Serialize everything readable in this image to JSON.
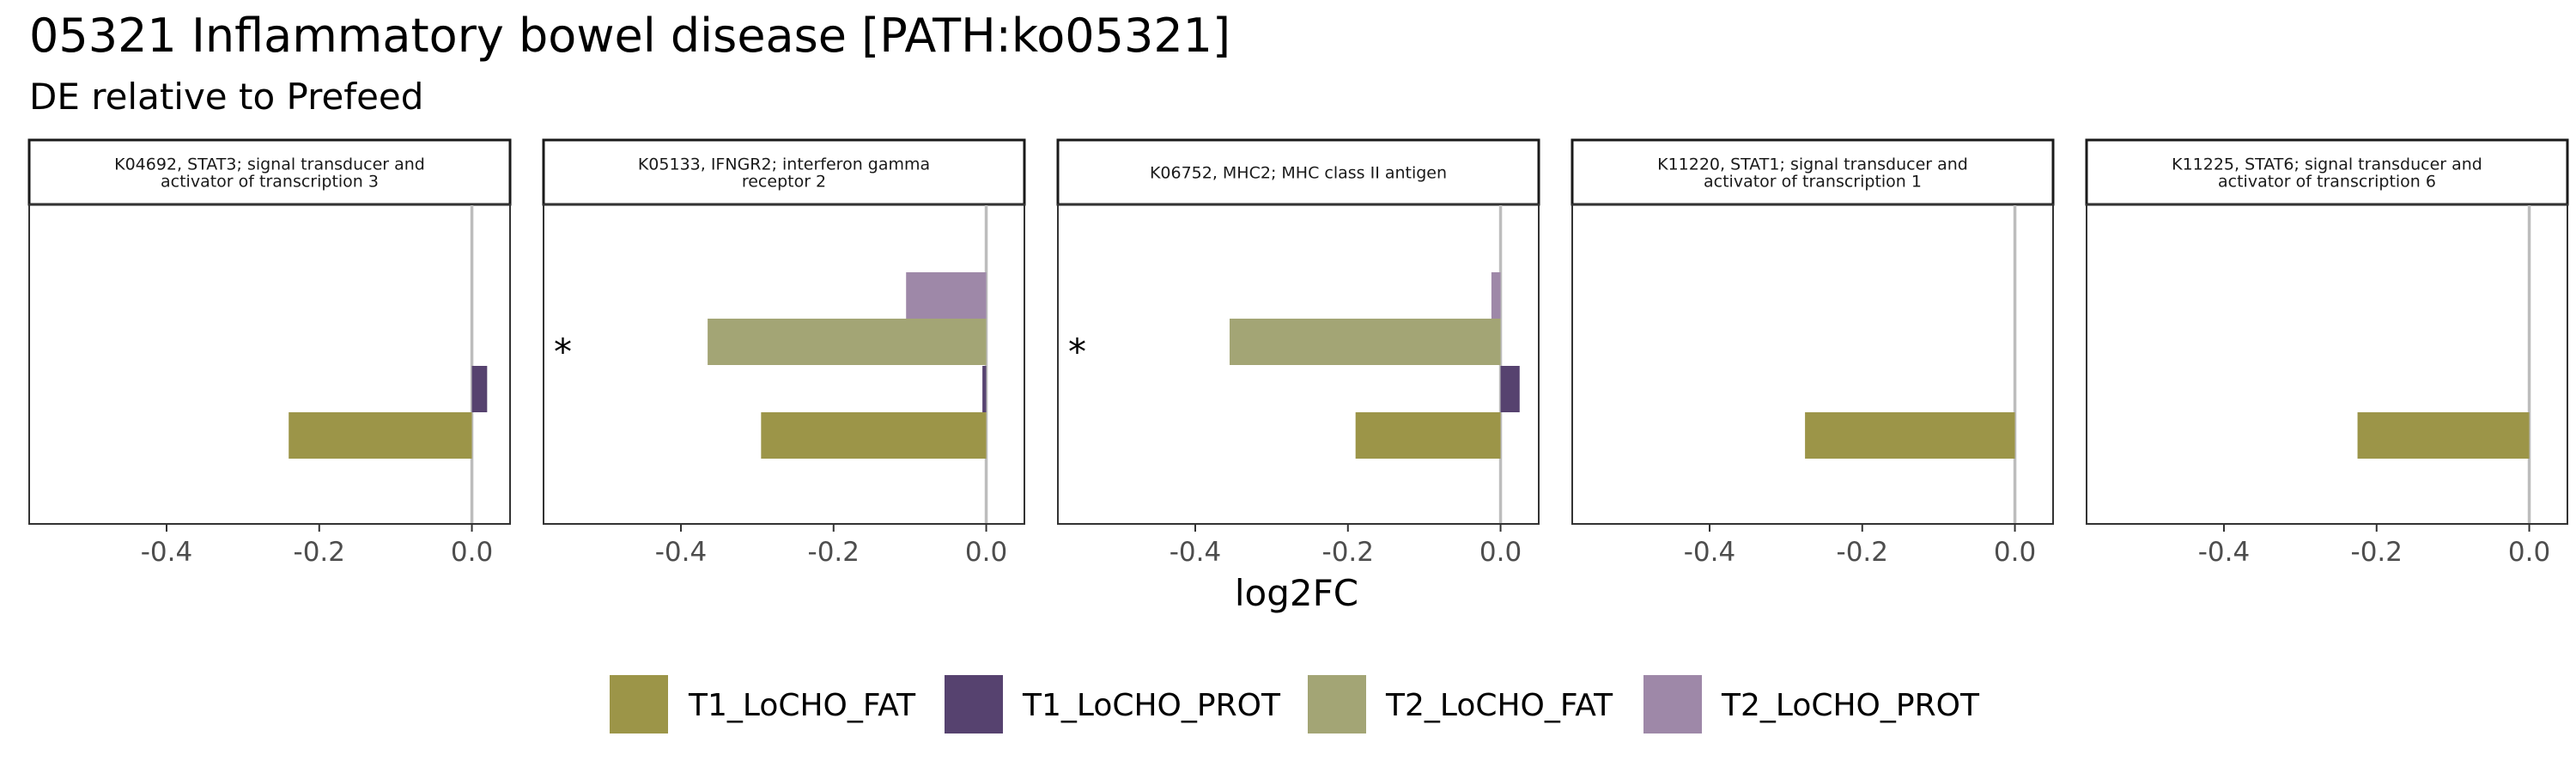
{
  "title": "05321 Inflammatory bowel disease [PATH:ko05321]",
  "subtitle": "DE relative to Prefeed",
  "chart_data": {
    "type": "bar",
    "orientation": "horizontal",
    "facet": true,
    "xlabel": "log2FC",
    "xlim": [
      -0.58,
      0.05
    ],
    "xticks": [
      -0.4,
      -0.2,
      0.0
    ],
    "xtick_labels": [
      "-0.4",
      "-0.2",
      "0.0"
    ],
    "grid": false,
    "legend_position": "bottom",
    "series": [
      {
        "name": "T1_LoCHO_FAT",
        "color": "#9c9548"
      },
      {
        "name": "T1_LoCHO_PROT",
        "color": "#56426f"
      },
      {
        "name": "T2_LoCHO_FAT",
        "color": "#a3a575"
      },
      {
        "name": "T2_LoCHO_PROT",
        "color": "#9e88a8"
      }
    ],
    "panels": [
      {
        "label_lines": [
          "K04692, STAT3; signal transducer and",
          "activator of transcription 3"
        ],
        "values": [
          -0.24,
          0.02,
          null,
          null
        ],
        "significant": false
      },
      {
        "label_lines": [
          "K05133, IFNGR2; interferon gamma",
          "receptor 2"
        ],
        "values": [
          -0.295,
          -0.005,
          -0.365,
          -0.105
        ],
        "significant": true
      },
      {
        "label_lines": [
          "K06752, MHC2; MHC class II antigen"
        ],
        "values": [
          -0.19,
          0.025,
          -0.355,
          -0.012
        ],
        "significant": true
      },
      {
        "label_lines": [
          "K11220, STAT1; signal transducer and",
          "activator of transcription 1"
        ],
        "values": [
          -0.275,
          null,
          null,
          null
        ],
        "significant": false
      },
      {
        "label_lines": [
          "K11225, STAT6; signal transducer and",
          "activator of transcription 6"
        ],
        "values": [
          -0.225,
          null,
          null,
          null
        ],
        "significant": false
      }
    ],
    "significance_marker": "*"
  }
}
